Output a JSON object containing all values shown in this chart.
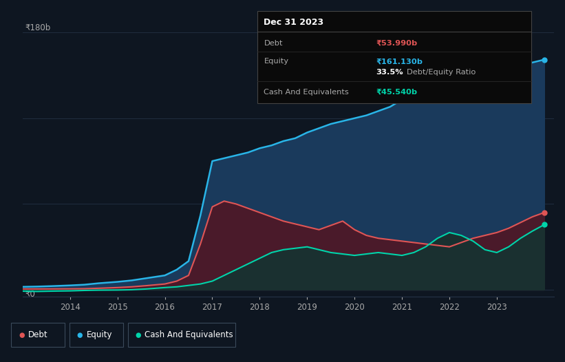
{
  "background_color": "#0e1621",
  "plot_bg_color": "#0e1621",
  "ylabel_top": "₹180b",
  "ylabel_bottom": "₹0",
  "equity_color": "#29b5e8",
  "debt_color": "#e05555",
  "cash_color": "#00d4aa",
  "equity_fill": "#1a3a5c",
  "debt_fill": "#4a1a2a",
  "cash_fill": "#1a3030",
  "grid_color": "#253347",
  "years": [
    2013.0,
    2013.3,
    2013.6,
    2014.0,
    2014.3,
    2014.6,
    2015.0,
    2015.3,
    2015.6,
    2016.0,
    2016.25,
    2016.5,
    2016.75,
    2017.0,
    2017.25,
    2017.5,
    2017.75,
    2018.0,
    2018.25,
    2018.5,
    2018.75,
    2019.0,
    2019.25,
    2019.5,
    2019.75,
    2020.0,
    2020.25,
    2020.5,
    2020.75,
    2021.0,
    2021.25,
    2021.5,
    2021.75,
    2022.0,
    2022.25,
    2022.5,
    2022.75,
    2023.0,
    2023.25,
    2023.5,
    2023.75,
    2024.0
  ],
  "equity": [
    2,
    2.2,
    2.5,
    3.0,
    3.5,
    4.5,
    5.5,
    6.5,
    8.0,
    10,
    14,
    20,
    52,
    90,
    92,
    94,
    96,
    99,
    101,
    104,
    106,
    110,
    113,
    116,
    118,
    120,
    122,
    125,
    128,
    133,
    142,
    152,
    160,
    168,
    172,
    165,
    158,
    152,
    153,
    156,
    159,
    161
  ],
  "debt": [
    0.5,
    0.5,
    0.5,
    0.6,
    0.7,
    1.0,
    1.5,
    2.0,
    2.8,
    4.0,
    6.0,
    10.0,
    32,
    58,
    62,
    60,
    57,
    54,
    51,
    48,
    46,
    44,
    42,
    45,
    48,
    42,
    38,
    36,
    35,
    34,
    33,
    32,
    31,
    30,
    33,
    36,
    38,
    40,
    43,
    47,
    51,
    54
  ],
  "cash": [
    -1,
    -1.2,
    -1.0,
    -0.8,
    -0.5,
    -0.3,
    -0.2,
    0,
    0.5,
    1.5,
    2.0,
    3.0,
    4.0,
    6.0,
    10,
    14,
    18,
    22,
    26,
    28,
    29,
    30,
    28,
    26,
    25,
    24,
    25,
    26,
    25,
    24,
    26,
    30,
    36,
    40,
    38,
    34,
    28,
    26,
    30,
    36,
    41,
    45.5
  ],
  "ylim": [
    -5,
    185
  ],
  "xlim": [
    2013.0,
    2024.2
  ],
  "legend_items": [
    {
      "label": "Debt",
      "color": "#e05555"
    },
    {
      "label": "Equity",
      "color": "#29b5e8"
    },
    {
      "label": "Cash And Equivalents",
      "color": "#00d4aa"
    }
  ],
  "tooltip": {
    "date": "Dec 31 2023",
    "debt_label": "Debt",
    "debt_value": "₹53.990b",
    "equity_label": "Equity",
    "equity_value": "₹161.130b",
    "ratio_value": "33.5%",
    "ratio_label": "Debt/Equity Ratio",
    "cash_label": "Cash And Equivalents",
    "cash_value": "₹45.540b"
  }
}
